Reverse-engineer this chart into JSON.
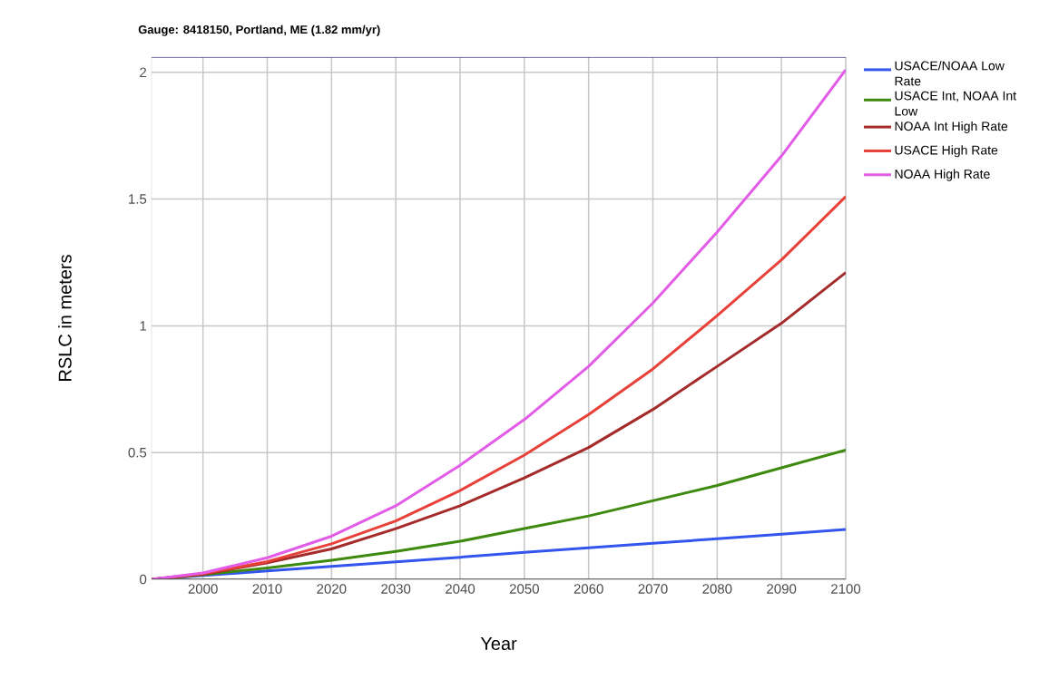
{
  "chart_data": {
    "type": "line",
    "title": "Gauge: 8418150, Portland, ME (1.82 mm/yr)",
    "xlabel": "Year",
    "ylabel": "RSLC in meters",
    "x": [
      1992,
      2000,
      2010,
      2020,
      2030,
      2040,
      2050,
      2060,
      2070,
      2080,
      2090,
      2100
    ],
    "series": [
      {
        "name": "USACE/NOAA Low Rate",
        "color": "#3355ee",
        "values": [
          0,
          0.015,
          0.033,
          0.051,
          0.069,
          0.087,
          0.106,
          0.124,
          0.142,
          0.16,
          0.178,
          0.197
        ]
      },
      {
        "name": "USACE Int, NOAA Int Low",
        "color": "#3d8a0f",
        "values": [
          0,
          0.018,
          0.045,
          0.075,
          0.11,
          0.15,
          0.2,
          0.25,
          0.31,
          0.37,
          0.44,
          0.51
        ]
      },
      {
        "name": "NOAA Int High Rate",
        "color": "#a52a2a",
        "values": [
          0,
          0.02,
          0.065,
          0.12,
          0.2,
          0.29,
          0.4,
          0.52,
          0.67,
          0.84,
          1.01,
          1.21
        ]
      },
      {
        "name": "USACE High Rate",
        "color": "#e8413a",
        "values": [
          0,
          0.022,
          0.07,
          0.14,
          0.23,
          0.35,
          0.49,
          0.65,
          0.83,
          1.04,
          1.26,
          1.51
        ]
      },
      {
        "name": "NOAA High Rate",
        "color": "#e35ce8",
        "values": [
          0,
          0.025,
          0.085,
          0.17,
          0.29,
          0.45,
          0.63,
          0.84,
          1.09,
          1.37,
          1.67,
          2.01
        ]
      }
    ],
    "xlim": [
      1992,
      2100
    ],
    "ylim": [
      0,
      2.06
    ],
    "xticks": [
      2000,
      2010,
      2020,
      2030,
      2040,
      2050,
      2060,
      2070,
      2080,
      2090,
      2100
    ],
    "yticks": [
      0,
      0.5,
      1,
      1.5,
      2
    ],
    "grid": true,
    "legend": "right"
  }
}
